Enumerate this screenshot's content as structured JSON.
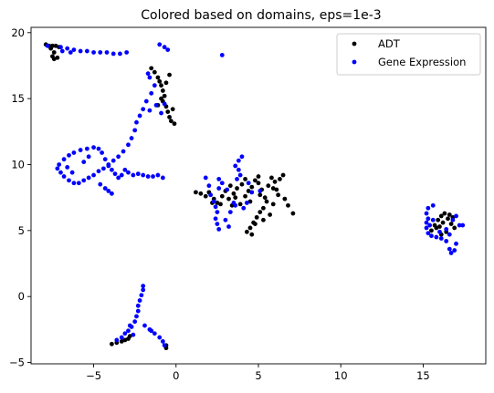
{
  "chart_data": {
    "type": "scatter",
    "title": "Colored based on domains, eps=1e-3",
    "xlabel": "",
    "ylabel": "",
    "xlim": [
      -8.8,
      18.8
    ],
    "ylim": [
      -5.1,
      20.4
    ],
    "x_ticks": [
      -5,
      0,
      5,
      10,
      15
    ],
    "y_ticks": [
      -5,
      0,
      5,
      10,
      15,
      20
    ],
    "grid": false,
    "legend_position": "top-right",
    "series": [
      {
        "name": "ADT",
        "color": "#000000",
        "points": [
          [
            -7.9,
            19.1
          ],
          [
            -7.7,
            19.0
          ],
          [
            -7.5,
            19.0
          ],
          [
            -7.3,
            19.0
          ],
          [
            -7.6,
            18.8
          ],
          [
            -7.4,
            18.5
          ],
          [
            -7.5,
            18.2
          ],
          [
            -7.4,
            18.0
          ],
          [
            -7.2,
            18.1
          ],
          [
            -7.1,
            18.9
          ],
          [
            -1.5,
            17.3
          ],
          [
            -1.3,
            17.0
          ],
          [
            -1.1,
            16.6
          ],
          [
            -1.0,
            16.3
          ],
          [
            -0.9,
            16.0
          ],
          [
            -0.8,
            15.6
          ],
          [
            -0.7,
            15.2
          ],
          [
            -0.8,
            14.8
          ],
          [
            -0.6,
            14.4
          ],
          [
            -0.5,
            14.0
          ],
          [
            -0.4,
            13.6
          ],
          [
            -0.3,
            13.3
          ],
          [
            -0.1,
            13.1
          ],
          [
            -0.2,
            14.2
          ],
          [
            -0.9,
            15.0
          ],
          [
            -0.6,
            16.2
          ],
          [
            -0.4,
            16.8
          ],
          [
            -1.1,
            14.5
          ],
          [
            1.2,
            7.9
          ],
          [
            1.5,
            7.8
          ],
          [
            1.8,
            7.6
          ],
          [
            2.0,
            7.9
          ],
          [
            2.3,
            7.4
          ],
          [
            2.5,
            7.1
          ],
          [
            2.8,
            7.6
          ],
          [
            3.0,
            8.0
          ],
          [
            3.2,
            7.4
          ],
          [
            3.5,
            7.8
          ],
          [
            3.7,
            8.2
          ],
          [
            4.0,
            8.5
          ],
          [
            4.2,
            7.6
          ],
          [
            4.4,
            8.0
          ],
          [
            4.6,
            8.3
          ],
          [
            4.8,
            8.8
          ],
          [
            5.0,
            8.6
          ],
          [
            5.2,
            8.1
          ],
          [
            5.4,
            7.5
          ],
          [
            5.6,
            8.4
          ],
          [
            5.8,
            9.0
          ],
          [
            6.0,
            8.7
          ],
          [
            6.1,
            8.1
          ],
          [
            6.3,
            8.9
          ],
          [
            6.5,
            9.2
          ],
          [
            6.6,
            7.4
          ],
          [
            6.8,
            6.9
          ],
          [
            7.1,
            6.3
          ],
          [
            5.9,
            7.0
          ],
          [
            5.7,
            6.2
          ],
          [
            5.3,
            6.7
          ],
          [
            5.1,
            6.4
          ],
          [
            4.9,
            6.0
          ],
          [
            4.7,
            5.6
          ],
          [
            4.5,
            5.2
          ],
          [
            4.3,
            4.9
          ],
          [
            4.6,
            4.7
          ],
          [
            4.8,
            5.5
          ],
          [
            5.3,
            5.8
          ],
          [
            5.5,
            7.2
          ],
          [
            5.1,
            7.7
          ],
          [
            4.5,
            7.2
          ],
          [
            3.9,
            7.0
          ],
          [
            3.4,
            6.9
          ],
          [
            3.6,
            7.5
          ],
          [
            2.7,
            7.0
          ],
          [
            2.2,
            7.1
          ],
          [
            5.9,
            8.2
          ],
          [
            6.2,
            7.7
          ],
          [
            5.0,
            9.1
          ],
          [
            4.2,
            8.9
          ],
          [
            3.3,
            8.4
          ],
          [
            15.5,
            5.0
          ],
          [
            15.7,
            5.4
          ],
          [
            15.9,
            5.8
          ],
          [
            16.1,
            6.1
          ],
          [
            16.3,
            6.3
          ],
          [
            16.5,
            5.9
          ],
          [
            16.7,
            5.5
          ],
          [
            16.9,
            5.2
          ],
          [
            16.4,
            4.9
          ],
          [
            16.1,
            4.7
          ],
          [
            15.8,
            5.2
          ],
          [
            16.6,
            6.2
          ],
          [
            16.0,
            5.3
          ],
          [
            16.2,
            5.6
          ],
          [
            16.8,
            6.0
          ],
          [
            -3.9,
            -3.6
          ],
          [
            -3.6,
            -3.5
          ],
          [
            -3.3,
            -3.4
          ],
          [
            -3.1,
            -3.3
          ],
          [
            -2.9,
            -3.2
          ],
          [
            -2.8,
            -3.0
          ],
          [
            -0.6,
            -3.9
          ],
          [
            -0.6,
            -3.7
          ]
        ]
      },
      {
        "name": "Gene Expression",
        "color": "#0000ff",
        "points": [
          [
            -7.8,
            19.0
          ],
          [
            -7.0,
            18.9
          ],
          [
            -6.6,
            18.8
          ],
          [
            -6.2,
            18.7
          ],
          [
            -5.8,
            18.6
          ],
          [
            -5.4,
            18.6
          ],
          [
            -5.0,
            18.5
          ],
          [
            -4.6,
            18.5
          ],
          [
            -4.2,
            18.5
          ],
          [
            -3.8,
            18.4
          ],
          [
            -3.4,
            18.4
          ],
          [
            -3.0,
            18.5
          ],
          [
            -6.9,
            18.6
          ],
          [
            -6.4,
            18.5
          ],
          [
            -1.0,
            19.1
          ],
          [
            -0.7,
            18.9
          ],
          [
            -0.5,
            18.7
          ],
          [
            2.8,
            18.3
          ],
          [
            -1.3,
            16.0
          ],
          [
            -1.5,
            15.4
          ],
          [
            -1.8,
            14.8
          ],
          [
            -2.0,
            14.2
          ],
          [
            -2.2,
            13.7
          ],
          [
            -2.4,
            13.2
          ],
          [
            -2.5,
            12.6
          ],
          [
            -2.7,
            12.0
          ],
          [
            -2.9,
            11.5
          ],
          [
            -3.2,
            11.0
          ],
          [
            -3.5,
            10.6
          ],
          [
            -3.8,
            10.3
          ],
          [
            -4.1,
            10.0
          ],
          [
            -4.4,
            9.7
          ],
          [
            -4.7,
            9.5
          ],
          [
            -5.0,
            9.2
          ],
          [
            -5.3,
            9.0
          ],
          [
            -5.6,
            8.8
          ],
          [
            -5.9,
            8.6
          ],
          [
            -6.2,
            8.6
          ],
          [
            -6.5,
            8.8
          ],
          [
            -6.8,
            9.1
          ],
          [
            -7.0,
            9.4
          ],
          [
            -7.2,
            9.7
          ],
          [
            -7.1,
            10.0
          ],
          [
            -6.8,
            10.4
          ],
          [
            -6.5,
            10.7
          ],
          [
            -6.2,
            10.9
          ],
          [
            -5.8,
            11.1
          ],
          [
            -5.4,
            11.2
          ],
          [
            -5.0,
            11.3
          ],
          [
            -4.7,
            11.2
          ],
          [
            -4.5,
            10.9
          ],
          [
            -4.3,
            10.4
          ],
          [
            -4.1,
            9.9
          ],
          [
            -3.9,
            9.6
          ],
          [
            -3.7,
            9.3
          ],
          [
            -3.5,
            9.0
          ],
          [
            -3.3,
            9.2
          ],
          [
            -3.1,
            9.6
          ],
          [
            -2.9,
            9.4
          ],
          [
            -2.6,
            9.2
          ],
          [
            -2.3,
            9.3
          ],
          [
            -2.0,
            9.2
          ],
          [
            -1.7,
            9.1
          ],
          [
            -1.4,
            9.1
          ],
          [
            -1.1,
            9.2
          ],
          [
            -0.8,
            9.0
          ],
          [
            -4.6,
            8.5
          ],
          [
            -4.3,
            8.2
          ],
          [
            -4.1,
            8.0
          ],
          [
            -3.9,
            7.8
          ],
          [
            -6.3,
            9.4
          ],
          [
            -6.6,
            9.8
          ],
          [
            -5.6,
            10.2
          ],
          [
            -5.3,
            10.6
          ],
          [
            -1.2,
            14.5
          ],
          [
            -1.6,
            14.1
          ],
          [
            -0.9,
            13.9
          ],
          [
            -0.7,
            14.6
          ],
          [
            -1.7,
            16.9
          ],
          [
            -1.6,
            16.6
          ],
          [
            4.0,
            10.6
          ],
          [
            3.8,
            10.3
          ],
          [
            3.6,
            9.9
          ],
          [
            3.8,
            9.6
          ],
          [
            3.9,
            9.2
          ],
          [
            3.7,
            8.9
          ],
          [
            2.6,
            8.9
          ],
          [
            2.8,
            8.6
          ],
          [
            2.6,
            8.2
          ],
          [
            1.8,
            9.0
          ],
          [
            2.0,
            8.4
          ],
          [
            2.1,
            7.7
          ],
          [
            2.3,
            7.2
          ],
          [
            2.4,
            6.8
          ],
          [
            2.5,
            6.4
          ],
          [
            2.4,
            5.9
          ],
          [
            2.5,
            5.5
          ],
          [
            2.6,
            5.1
          ],
          [
            3.0,
            5.8
          ],
          [
            3.2,
            5.3
          ],
          [
            3.3,
            6.4
          ],
          [
            3.5,
            7.1
          ],
          [
            3.6,
            6.9
          ],
          [
            4.1,
            6.7
          ],
          [
            4.3,
            7.1
          ],
          [
            3.1,
            8.1
          ],
          [
            4.6,
            7.9
          ],
          [
            5.1,
            8.0
          ],
          [
            4.4,
            8.6
          ],
          [
            15.3,
            6.7
          ],
          [
            15.2,
            6.3
          ],
          [
            15.3,
            5.9
          ],
          [
            15.2,
            5.6
          ],
          [
            15.2,
            5.2
          ],
          [
            15.3,
            4.8
          ],
          [
            15.5,
            4.6
          ],
          [
            15.8,
            4.5
          ],
          [
            16.1,
            4.4
          ],
          [
            16.4,
            4.2
          ],
          [
            16.6,
            3.6
          ],
          [
            16.7,
            3.3
          ],
          [
            16.9,
            3.5
          ],
          [
            17.0,
            4.0
          ],
          [
            17.2,
            5.4
          ],
          [
            17.4,
            5.4
          ],
          [
            16.8,
            5.8
          ],
          [
            17.0,
            6.1
          ],
          [
            15.6,
            6.9
          ],
          [
            15.4,
            5.4
          ],
          [
            15.6,
            5.8
          ],
          [
            16.0,
            4.9
          ],
          [
            16.4,
            5.1
          ],
          [
            16.6,
            4.7
          ],
          [
            -2.0,
            0.8
          ],
          [
            -2.0,
            0.5
          ],
          [
            -2.1,
            0.1
          ],
          [
            -2.2,
            -0.3
          ],
          [
            -2.3,
            -0.7
          ],
          [
            -2.3,
            -1.1
          ],
          [
            -2.4,
            -1.5
          ],
          [
            -2.5,
            -1.9
          ],
          [
            -2.7,
            -2.3
          ],
          [
            -2.9,
            -2.6
          ],
          [
            -3.1,
            -2.8
          ],
          [
            -3.3,
            -3.1
          ],
          [
            -3.6,
            -3.3
          ],
          [
            -1.9,
            -2.2
          ],
          [
            -1.6,
            -2.5
          ],
          [
            -1.3,
            -2.8
          ],
          [
            -1.0,
            -3.1
          ],
          [
            -0.8,
            -3.4
          ],
          [
            -0.7,
            -3.7
          ],
          [
            -2.8,
            -2.2
          ],
          [
            -1.5,
            -2.6
          ],
          [
            -2.6,
            -2.9
          ]
        ]
      }
    ]
  }
}
